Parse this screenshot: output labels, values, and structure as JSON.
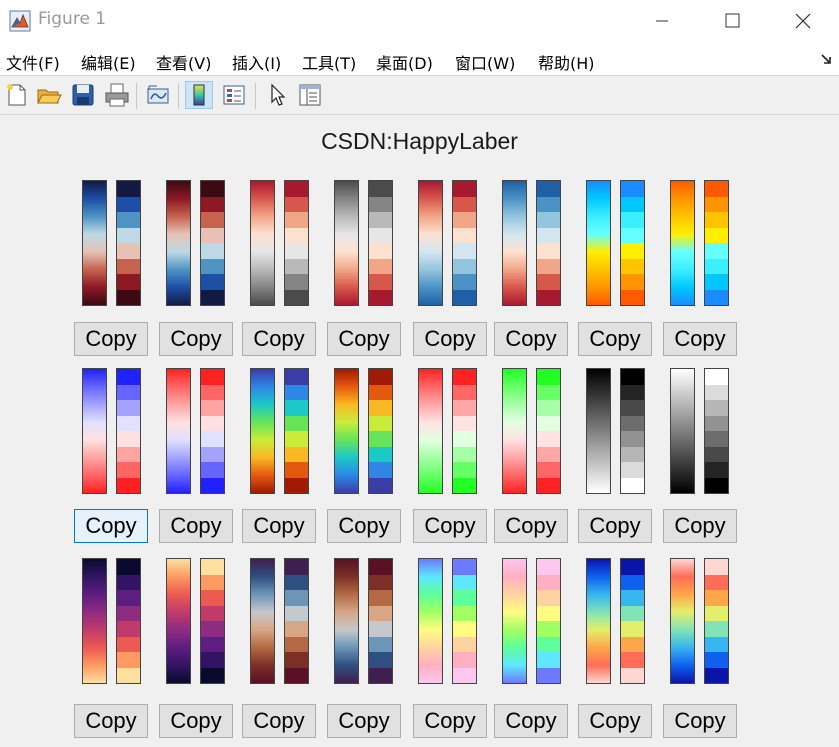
{
  "window": {
    "title": "Figure 1",
    "icon": "matlab-figure-icon",
    "controls": [
      "minimize-icon",
      "maximize-icon",
      "close-icon"
    ]
  },
  "menubar": {
    "items": [
      "文件(F)",
      "编辑(E)",
      "查看(V)",
      "插入(I)",
      "工具(T)",
      "桌面(D)",
      "窗口(W)",
      "帮助(H)"
    ],
    "overflow_icon": "dock-arrow-icon"
  },
  "toolbar": {
    "buttons": [
      "new-figure-icon",
      "open-file-icon",
      "save-icon",
      "print-icon",
      "link-plot-icon",
      "insert-colorbar-icon",
      "insert-legend-icon",
      "pointer-icon",
      "property-inspector-icon"
    ],
    "active": [
      "insert-colorbar-icon"
    ]
  },
  "figure": {
    "title": "CSDN:HappyLaber",
    "copy_label": "Copy",
    "focused_button": 8,
    "colormaps": [
      {
        "colors": [
          "#121a44",
          "#1d4fa6",
          "#4f93c3",
          "#bdd9e6",
          "#e7c2b4",
          "#c5634f",
          "#8d1824",
          "#3b0a13"
        ]
      },
      {
        "colors": [
          "#3b0a13",
          "#8d1824",
          "#c5634f",
          "#e7c2b4",
          "#bdd9e6",
          "#4f93c3",
          "#1d4fa6",
          "#121a44"
        ]
      },
      {
        "colors": [
          "#a7192f",
          "#d8574c",
          "#f2a688",
          "#fde1d0",
          "#e6e6e6",
          "#b9b9b9",
          "#848484",
          "#4b4b4b"
        ]
      },
      {
        "colors": [
          "#4b4b4b",
          "#848484",
          "#b9b9b9",
          "#e6e6e6",
          "#fde1d0",
          "#f2a688",
          "#d8574c",
          "#a7192f"
        ]
      },
      {
        "colors": [
          "#a7192f",
          "#d8574c",
          "#f2a688",
          "#fde1d0",
          "#d3e6f0",
          "#94c5de",
          "#4a93c4",
          "#1f5fa6"
        ]
      },
      {
        "colors": [
          "#1f5fa6",
          "#4a93c4",
          "#94c5de",
          "#d3e6f0",
          "#fde1d0",
          "#f2a688",
          "#d8574c",
          "#a7192f"
        ]
      },
      {
        "colors": [
          "#1a8cff",
          "#00c8ff",
          "#3cefff",
          "#66ffff",
          "#ffee00",
          "#ffc400",
          "#ff9400",
          "#ff5a00"
        ]
      },
      {
        "colors": [
          "#ff5a00",
          "#ff9400",
          "#ffc400",
          "#ffee00",
          "#66ffff",
          "#3cefff",
          "#00c8ff",
          "#1a8cff"
        ]
      },
      {
        "colors": [
          "#2121ff",
          "#6565ff",
          "#a3a3ff",
          "#e0e0ff",
          "#ffe0e0",
          "#ffa3a3",
          "#ff6565",
          "#ff2121"
        ]
      },
      {
        "colors": [
          "#ff2121",
          "#ff6565",
          "#ffa3a3",
          "#ffe0e0",
          "#e0e0ff",
          "#a3a3ff",
          "#6565ff",
          "#2121ff"
        ]
      },
      {
        "colors": [
          "#3b3da6",
          "#2e86e6",
          "#1cc8c8",
          "#65e45a",
          "#c9ec3a",
          "#f9b824",
          "#e5590f",
          "#a11a05"
        ]
      },
      {
        "colors": [
          "#a11a05",
          "#e5590f",
          "#f9b824",
          "#c9ec3a",
          "#65e45a",
          "#1cc8c8",
          "#2e86e6",
          "#3b3da6"
        ]
      },
      {
        "colors": [
          "#ff2222",
          "#ff6666",
          "#ffa6a6",
          "#ffe2e2",
          "#e2ffe2",
          "#a6ffa6",
          "#66ff66",
          "#22ff22"
        ]
      },
      {
        "colors": [
          "#22ff22",
          "#66ff66",
          "#a6ffa6",
          "#e2ffe2",
          "#ffe2e2",
          "#ffa6a6",
          "#ff6666",
          "#ff2222"
        ]
      },
      {
        "colors": [
          "#000000",
          "#242424",
          "#494949",
          "#6d6d6d",
          "#929292",
          "#b6b6b6",
          "#dbdbdb",
          "#ffffff"
        ]
      },
      {
        "colors": [
          "#ffffff",
          "#dbdbdb",
          "#b6b6b6",
          "#929292",
          "#6d6d6d",
          "#494949",
          "#242424",
          "#000000"
        ]
      },
      {
        "colors": [
          "#0a0a2e",
          "#321462",
          "#5e1d80",
          "#8e2c80",
          "#c03b6b",
          "#ec5a52",
          "#fd9a62",
          "#fde0a0"
        ]
      },
      {
        "colors": [
          "#fde0a0",
          "#fd9a62",
          "#ec5a52",
          "#c03b6b",
          "#8e2c80",
          "#5e1d80",
          "#321462",
          "#0a0a2e"
        ]
      },
      {
        "colors": [
          "#3f1f4f",
          "#2f4f80",
          "#6c95b8",
          "#c5c8cc",
          "#d6a685",
          "#b36a44",
          "#7c2f26",
          "#5a1026"
        ]
      },
      {
        "colors": [
          "#5a1026",
          "#7c2f26",
          "#b36a44",
          "#d6a685",
          "#c5c8cc",
          "#6c95b8",
          "#2f4f80",
          "#3f1f4f"
        ]
      },
      {
        "colors": [
          "#6d79ff",
          "#5ee7ff",
          "#5dff9a",
          "#a2ff62",
          "#fffb83",
          "#ffd3a0",
          "#ffafc2",
          "#ffc6ef"
        ]
      },
      {
        "colors": [
          "#ffc6ef",
          "#ffafc2",
          "#ffd3a0",
          "#fffb83",
          "#a2ff62",
          "#5dff9a",
          "#5ee7ff",
          "#6d79ff"
        ]
      },
      {
        "colors": [
          "#0a14a8",
          "#1060ef",
          "#37b5ef",
          "#82e3b7",
          "#e3ef6a",
          "#ffa64b",
          "#ff6d57",
          "#ffd7d2"
        ]
      },
      {
        "colors": [
          "#ffd7d2",
          "#ff6d57",
          "#ffa64b",
          "#e3ef6a",
          "#82e3b7",
          "#37b5ef",
          "#1060ef",
          "#0a14a8"
        ]
      }
    ]
  }
}
